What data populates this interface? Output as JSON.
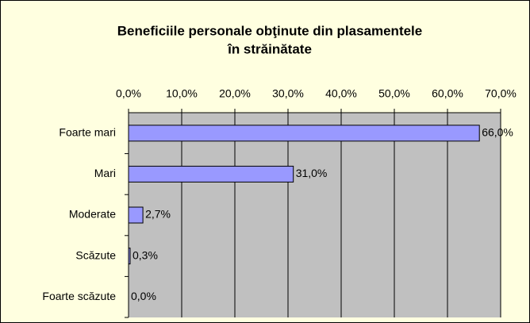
{
  "chart_data": {
    "type": "hbar",
    "title": [
      "Beneficiile personale obţinute din plasamentele",
      "în străinătate"
    ],
    "categories": [
      "Foarte mari",
      "Mari",
      "Moderate",
      "Scăzute",
      "Foarte scăzute"
    ],
    "values": [
      66.0,
      31.0,
      2.7,
      0.3,
      0.0
    ],
    "value_labels": [
      "66,0%",
      "31,0%",
      "2,7%",
      "0,3%",
      "0,0%"
    ],
    "color": "#9999ff",
    "xlim": [
      0,
      70
    ],
    "xticks": [
      {
        "value": 0,
        "label": "0,0%"
      },
      {
        "value": 10,
        "label": "10,0%"
      },
      {
        "value": 20,
        "label": "20,0%"
      },
      {
        "value": 30,
        "label": "30,0%"
      },
      {
        "value": 40,
        "label": "40,0%"
      },
      {
        "value": 50,
        "label": "50,0%"
      },
      {
        "value": 60,
        "label": "60,0%"
      },
      {
        "value": 70,
        "label": "70,0%"
      }
    ],
    "grid": true
  }
}
